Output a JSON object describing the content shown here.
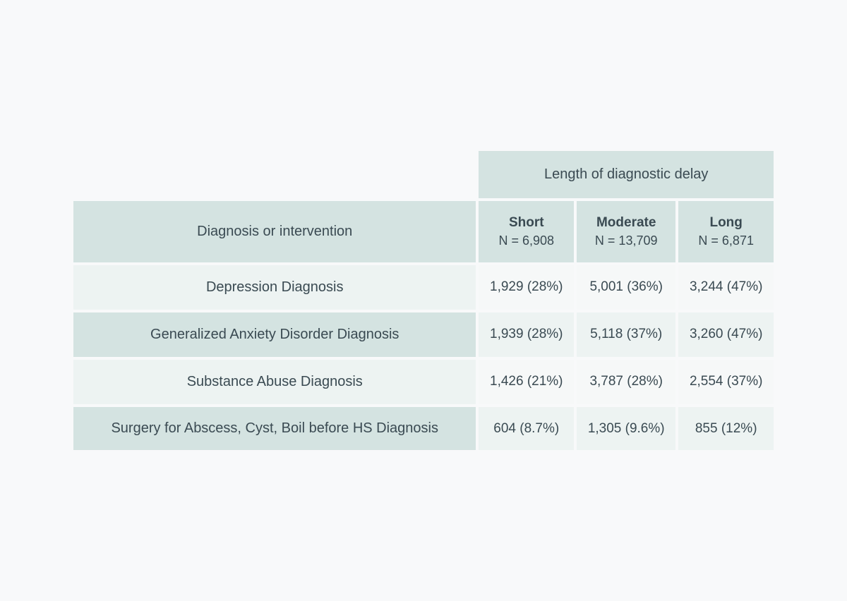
{
  "table": {
    "type": "table",
    "colors": {
      "page_bg": "#f8f9fa",
      "header_bg": "#d4e3e1",
      "row_label_even_bg": "#edf3f2",
      "row_label_odd_bg": "#d4e3e1",
      "data_even_bg": "#f6f8f8",
      "data_odd_bg": "#edf3f2",
      "text_color": "#3a4a52"
    },
    "fonts": {
      "header_span_fontsize": 20,
      "row_header_fontsize": 20,
      "col_title_fontsize": 19,
      "col_sub_fontsize": 18,
      "row_label_fontsize": 20,
      "data_fontsize": 19
    },
    "spanning_header": "Length of diagnostic delay",
    "row_header_label": "Diagnosis or intervention",
    "columns": [
      {
        "title": "Short",
        "subtitle": "N = 6,908"
      },
      {
        "title": "Moderate",
        "subtitle": "N = 13,709"
      },
      {
        "title": "Long",
        "subtitle": "N = 6,871"
      }
    ],
    "rows": [
      {
        "label": "Depression Diagnosis",
        "cells": [
          "1,929 (28%)",
          "5,001 (36%)",
          "3,244 (47%)"
        ]
      },
      {
        "label": "Generalized Anxiety Disorder Diagnosis",
        "cells": [
          "1,939 (28%)",
          "5,118 (37%)",
          "3,260 (47%)"
        ]
      },
      {
        "label": "Substance Abuse Diagnosis",
        "cells": [
          "1,426 (21%)",
          "3,787 (28%)",
          "2,554 (37%)"
        ]
      },
      {
        "label": "Surgery for Abscess, Cyst, Boil before HS Diagnosis",
        "cells": [
          "604 (8.7%)",
          "1,305 (9.6%)",
          "855 (12%)"
        ]
      }
    ]
  }
}
